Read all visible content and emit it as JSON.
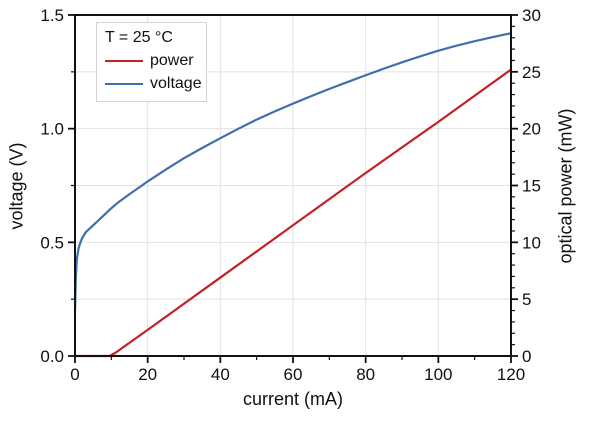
{
  "chart_data": {
    "type": "line",
    "title": "",
    "xlabel": "current (mA)",
    "ylabel_left": "voltage (V)",
    "ylabel_right": "optical power (mW)",
    "x_axis": {
      "min": 0,
      "max": 120,
      "major_ticks": [
        0,
        20,
        40,
        60,
        80,
        100,
        120
      ],
      "tick_labels": [
        "0",
        "20",
        "40",
        "60",
        "80",
        "100",
        "120"
      ],
      "minor_ticks": [
        10,
        30,
        50,
        70,
        90,
        110
      ]
    },
    "y_left": {
      "min": 0,
      "max": 1.5,
      "major_ticks": [
        0,
        0.5,
        1.0,
        1.5
      ],
      "tick_labels": [
        "0.0",
        "0.5",
        "1.0",
        "1.5"
      ],
      "minor_ticks": [
        0.25,
        0.75,
        1.25
      ]
    },
    "y_right": {
      "min": 0,
      "max": 30,
      "major_ticks": [
        0,
        5,
        10,
        15,
        20,
        25,
        30
      ],
      "tick_labels": [
        "0",
        "5",
        "10",
        "15",
        "20",
        "25",
        "30"
      ],
      "minor_ticks": [
        1,
        2,
        3,
        4,
        6,
        7,
        8,
        9,
        11,
        12,
        13,
        14,
        16,
        17,
        18,
        19,
        21,
        22,
        23,
        24,
        26,
        27,
        28,
        29
      ]
    },
    "grid": {
      "show": true,
      "x_values": [
        20,
        40,
        60,
        80,
        100
      ],
      "y_left_values": [
        0.25,
        0.5,
        0.75,
        1.0,
        1.25
      ],
      "color": "#e2e2e2"
    },
    "axis_color": "#111111",
    "series": [
      {
        "name": "power",
        "axis": "right",
        "color": "#c42026",
        "points": [
          [
            0,
            0
          ],
          [
            9.5,
            0
          ],
          [
            11,
            0.25
          ],
          [
            20,
            2.3
          ],
          [
            40,
            6.9
          ],
          [
            60,
            11.5
          ],
          [
            80,
            16.1
          ],
          [
            100,
            20.6
          ],
          [
            120,
            25.2
          ]
        ]
      },
      {
        "name": "voltage",
        "axis": "left",
        "color": "#3f6fad",
        "points": [
          [
            0,
            0.2
          ],
          [
            0.2,
            0.33
          ],
          [
            0.5,
            0.425
          ],
          [
            1,
            0.475
          ],
          [
            1.5,
            0.5
          ],
          [
            2,
            0.52
          ],
          [
            3,
            0.545
          ],
          [
            4,
            0.56
          ],
          [
            5,
            0.575
          ],
          [
            6,
            0.59
          ],
          [
            8,
            0.62
          ],
          [
            10,
            0.65
          ],
          [
            12,
            0.677
          ],
          [
            15,
            0.712
          ],
          [
            18,
            0.745
          ],
          [
            20,
            0.768
          ],
          [
            25,
            0.82
          ],
          [
            30,
            0.87
          ],
          [
            35,
            0.915
          ],
          [
            40,
            0.958
          ],
          [
            45,
            1.0
          ],
          [
            50,
            1.04
          ],
          [
            55,
            1.076
          ],
          [
            60,
            1.11
          ],
          [
            65,
            1.143
          ],
          [
            70,
            1.175
          ],
          [
            75,
            1.205
          ],
          [
            80,
            1.235
          ],
          [
            85,
            1.264
          ],
          [
            90,
            1.292
          ],
          [
            95,
            1.318
          ],
          [
            100,
            1.343
          ],
          [
            105,
            1.365
          ],
          [
            110,
            1.385
          ],
          [
            115,
            1.403
          ],
          [
            120,
            1.42
          ]
        ]
      },
      {
        "name": "voltage",
        "color": "#3f6fad"
      }
    ],
    "legend": {
      "title": "T = 25 °C",
      "position": "top-left",
      "items": [
        {
          "label": "power",
          "color": "#c42026"
        },
        {
          "label": "voltage",
          "color": "#3f6fad"
        }
      ]
    }
  }
}
